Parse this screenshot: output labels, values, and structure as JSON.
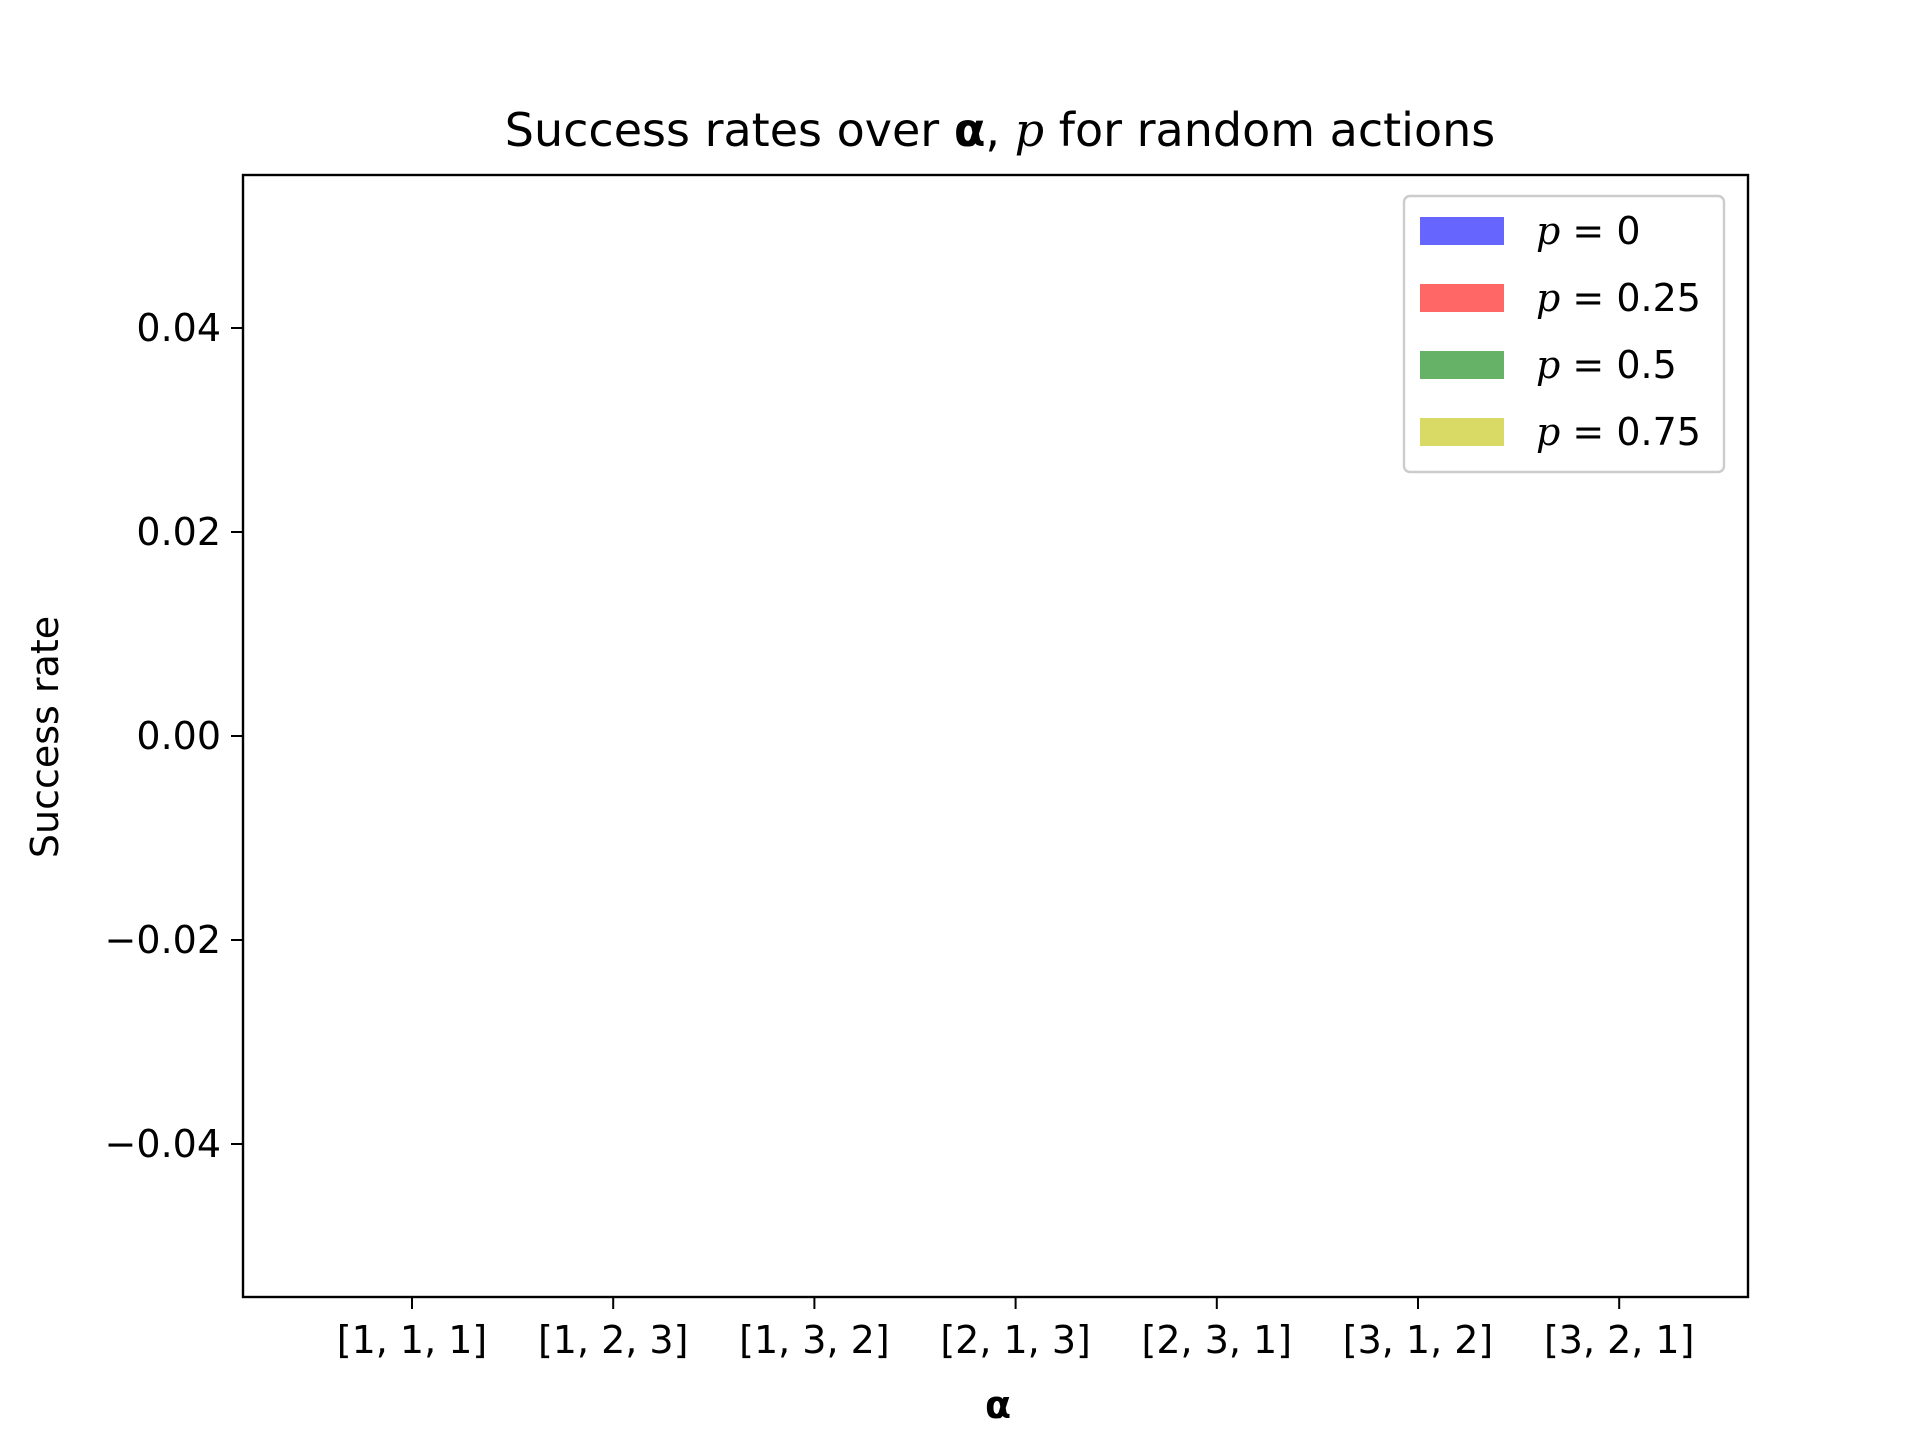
{
  "chart_data": {
    "type": "bar",
    "title": {
      "prefix": "Success rates over ",
      "bold_symbol": "α",
      "separator": ", ",
      "italic_symbol": "p",
      "suffix": " for random actions"
    },
    "xlabel": "α",
    "ylabel": "Success rate",
    "categories": [
      "[1, 1, 1]",
      "[1, 2, 3]",
      "[1, 3, 2]",
      "[2, 1, 3]",
      "[2, 3, 1]",
      "[3, 1, 2]",
      "[3, 2, 1]"
    ],
    "yticks": [
      0.04,
      0.02,
      0.0,
      -0.02,
      -0.04
    ],
    "ytick_labels": [
      "0.04",
      "0.02",
      "0.00",
      "−0.02",
      "−0.04"
    ],
    "ylim": [
      -0.055,
      0.055
    ],
    "grid": false,
    "legend_placement": "top-right",
    "series": [
      {
        "var": "p",
        "value_label": "0",
        "color": "#6666ff",
        "values": [
          0,
          0,
          0,
          0,
          0,
          0,
          0
        ]
      },
      {
        "var": "p",
        "value_label": "0.25",
        "color": "#ff6666",
        "values": [
          0,
          0,
          0,
          0,
          0,
          0,
          0
        ]
      },
      {
        "var": "p",
        "value_label": "0.5",
        "color": "#66b266",
        "values": [
          0,
          0,
          0,
          0,
          0,
          0,
          0
        ]
      },
      {
        "var": "p",
        "value_label": "0.75",
        "color": "#d9d966",
        "values": [
          0,
          0,
          0,
          0,
          0,
          0,
          0
        ]
      }
    ]
  }
}
